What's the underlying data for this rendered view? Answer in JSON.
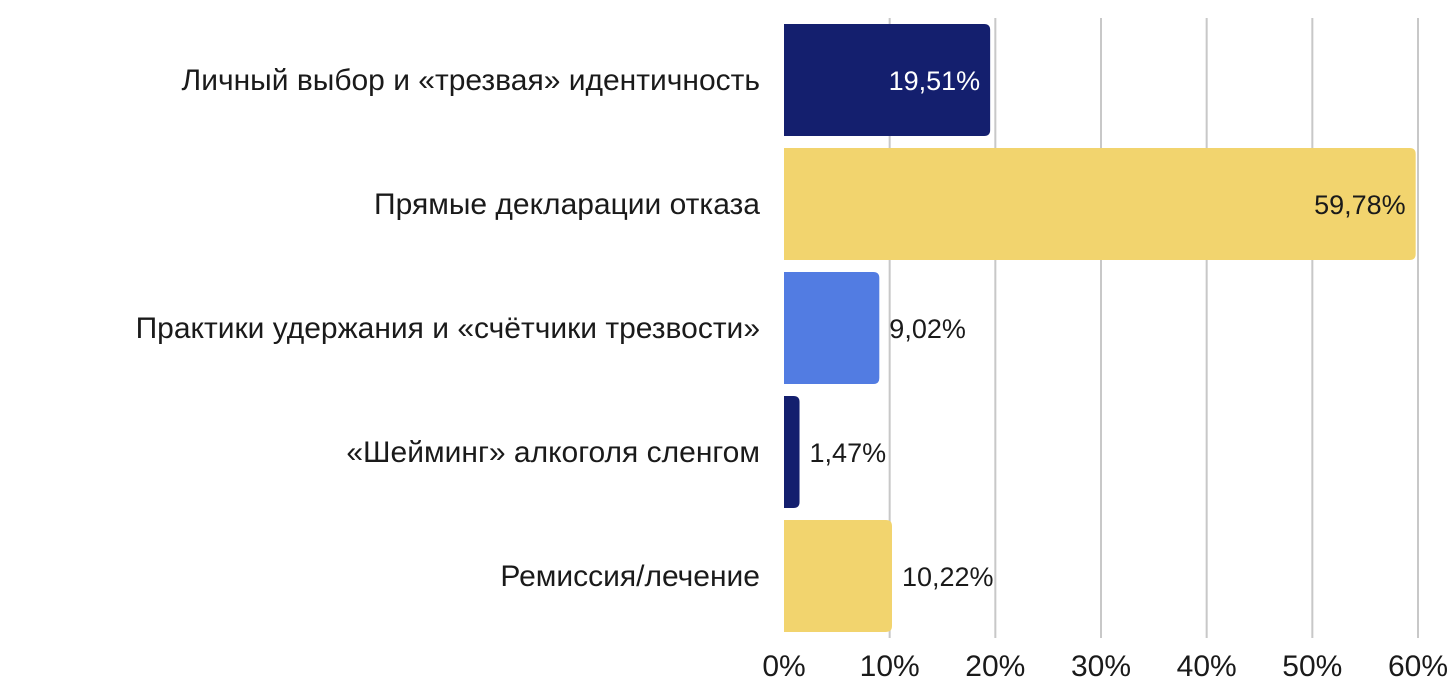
{
  "chart_data": {
    "type": "bar",
    "orientation": "horizontal",
    "categories": [
      "Личный выбор и «трезвая» идентичность",
      "Прямые декларации отказа",
      "Практики удержания и «счётчики трезвости»",
      "«Шейминг» алкоголя сленгом",
      "Ремиссия/лечение"
    ],
    "values": [
      19.51,
      59.78,
      9.02,
      1.47,
      10.22
    ],
    "value_labels": [
      "19,51%",
      "59,78%",
      "9,02%",
      "1,47%",
      "10,22%"
    ],
    "bar_colors": [
      "#141f6e",
      "#f2d46e",
      "#527ce2",
      "#141f6e",
      "#f2d46e"
    ],
    "xlim": [
      0,
      60
    ],
    "x_ticks": [
      0,
      10,
      20,
      30,
      40,
      50,
      60
    ],
    "x_tick_labels": [
      "0%",
      "10%",
      "20%",
      "30%",
      "40%",
      "50%",
      "60%"
    ],
    "grid": "vertical",
    "grid_color": "#c8c8c8",
    "title": "",
    "xlabel": "",
    "ylabel": ""
  }
}
